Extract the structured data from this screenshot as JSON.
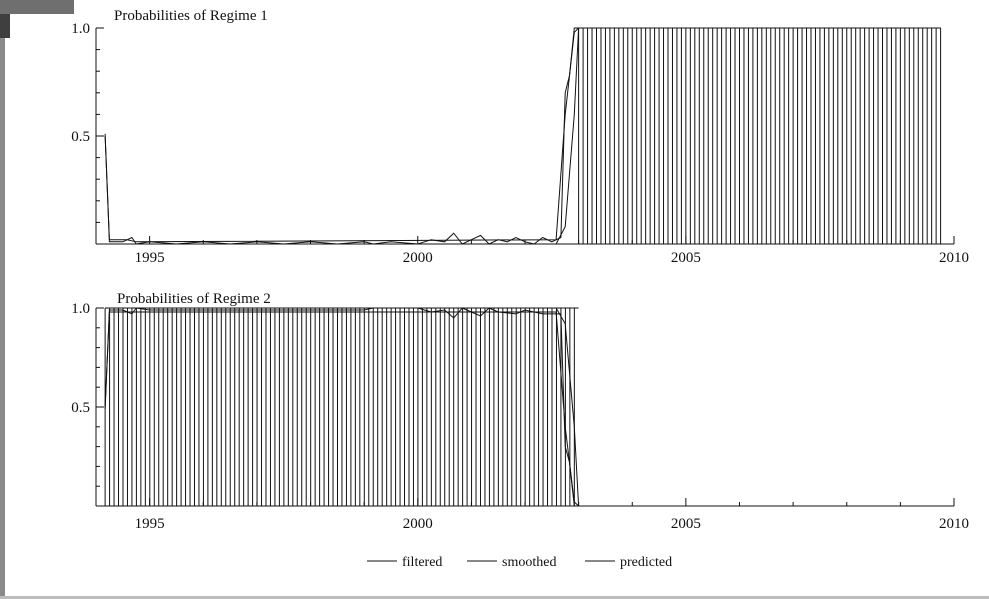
{
  "chart_data": [
    {
      "type": "line",
      "title": "Probabilities of Regime 1",
      "xlim": [
        1994,
        2010
      ],
      "ylim": [
        0,
        1
      ],
      "x_ticks": [
        1995,
        2000,
        2005,
        2010
      ],
      "y_ticks": [
        0.5,
        1.0
      ],
      "x_tick_labels": [
        "1995",
        "2000",
        "2005",
        "2010"
      ],
      "y_tick_labels": [
        "0.5",
        "1.0"
      ],
      "regime_periods": [
        [
          2003.0,
          2009.75
        ]
      ],
      "series": [
        {
          "name": "filtered",
          "points": [
            [
              1994.17,
              0.51
            ],
            [
              1994.25,
              0.01
            ],
            [
              1994.5,
              0.01
            ],
            [
              1994.67,
              0.03
            ],
            [
              1994.75,
              0.0
            ],
            [
              1995.0,
              0.01
            ],
            [
              1995.5,
              0.0
            ],
            [
              1996.0,
              0.01
            ],
            [
              1996.5,
              0.0
            ],
            [
              1997.0,
              0.01
            ],
            [
              1997.5,
              0.0
            ],
            [
              1998.0,
              0.01
            ],
            [
              1998.5,
              0.0
            ],
            [
              1999.0,
              0.01
            ],
            [
              1999.17,
              0.0
            ],
            [
              1999.5,
              0.01
            ],
            [
              2000.0,
              0.0
            ],
            [
              2000.25,
              0.02
            ],
            [
              2000.5,
              0.01
            ],
            [
              2000.67,
              0.05
            ],
            [
              2000.83,
              0.0
            ],
            [
              2001.0,
              0.02
            ],
            [
              2001.17,
              0.04
            ],
            [
              2001.33,
              0.0
            ],
            [
              2001.5,
              0.02
            ],
            [
              2001.67,
              0.01
            ],
            [
              2001.83,
              0.03
            ],
            [
              2002.0,
              0.01
            ],
            [
              2002.17,
              0.0
            ],
            [
              2002.33,
              0.03
            ],
            [
              2002.5,
              0.01
            ],
            [
              2002.67,
              0.03
            ],
            [
              2002.75,
              0.7
            ],
            [
              2002.83,
              0.78
            ],
            [
              2002.92,
              1.0
            ],
            [
              2003.0,
              1.0
            ],
            [
              2009.75,
              1.0
            ]
          ]
        },
        {
          "name": "smoothed",
          "points": [
            [
              1994.17,
              0.0
            ],
            [
              2002.58,
              0.0
            ],
            [
              2002.75,
              0.08
            ],
            [
              2002.92,
              0.6
            ],
            [
              2003.0,
              1.0
            ],
            [
              2009.75,
              1.0
            ]
          ]
        },
        {
          "name": "predicted",
          "points": [
            [
              1994.17,
              0.5
            ],
            [
              1994.25,
              0.02
            ],
            [
              1994.58,
              0.02
            ],
            [
              1994.75,
              0.01
            ],
            [
              2002.58,
              0.02
            ],
            [
              2002.75,
              0.6
            ],
            [
              2002.92,
              0.98
            ],
            [
              2003.0,
              1.0
            ],
            [
              2009.75,
              1.0
            ]
          ]
        }
      ]
    },
    {
      "type": "line",
      "title": "Probabilities of Regime 2",
      "xlim": [
        1994,
        2010
      ],
      "ylim": [
        0,
        1
      ],
      "x_ticks": [
        1995,
        2000,
        2005,
        2010
      ],
      "y_ticks": [
        0.5,
        1.0
      ],
      "x_tick_labels": [
        "1995",
        "2000",
        "2005",
        "2010"
      ],
      "y_tick_labels": [
        "0.5",
        "1.0"
      ],
      "regime_periods": [
        [
          1994.17,
          2003.0
        ]
      ],
      "series": [
        {
          "name": "filtered",
          "points": [
            [
              1994.17,
              0.49
            ],
            [
              1994.25,
              0.99
            ],
            [
              1994.5,
              0.99
            ],
            [
              1994.67,
              0.97
            ],
            [
              1994.75,
              1.0
            ],
            [
              1995.0,
              0.99
            ],
            [
              1996.0,
              0.99
            ],
            [
              1997.0,
              0.99
            ],
            [
              1998.0,
              0.99
            ],
            [
              1999.0,
              0.99
            ],
            [
              1999.17,
              1.0
            ],
            [
              2000.0,
              1.0
            ],
            [
              2000.25,
              0.98
            ],
            [
              2000.5,
              0.99
            ],
            [
              2000.67,
              0.95
            ],
            [
              2000.83,
              1.0
            ],
            [
              2001.0,
              0.98
            ],
            [
              2001.17,
              0.96
            ],
            [
              2001.33,
              1.0
            ],
            [
              2001.5,
              0.98
            ],
            [
              2001.83,
              0.97
            ],
            [
              2002.0,
              0.99
            ],
            [
              2002.33,
              0.97
            ],
            [
              2002.67,
              0.97
            ],
            [
              2002.75,
              0.3
            ],
            [
              2002.83,
              0.22
            ],
            [
              2002.92,
              0.0
            ],
            [
              2003.0,
              0.0
            ],
            [
              2009.75,
              0.0
            ]
          ]
        },
        {
          "name": "smoothed",
          "points": [
            [
              1994.17,
              1.0
            ],
            [
              2002.58,
              1.0
            ],
            [
              2002.75,
              0.92
            ],
            [
              2002.92,
              0.4
            ],
            [
              2003.0,
              0.0
            ],
            [
              2009.75,
              0.0
            ]
          ]
        },
        {
          "name": "predicted",
          "points": [
            [
              1994.17,
              0.5
            ],
            [
              1994.25,
              0.98
            ],
            [
              2002.58,
              0.98
            ],
            [
              2002.75,
              0.4
            ],
            [
              2002.92,
              0.02
            ],
            [
              2003.0,
              0.0
            ],
            [
              2009.75,
              0.0
            ]
          ]
        }
      ]
    }
  ],
  "legend": {
    "items": [
      {
        "label": "filtered"
      },
      {
        "label": "smoothed"
      },
      {
        "label": "predicted"
      }
    ]
  },
  "colors": {
    "line": "#111111",
    "axis": "#111111"
  }
}
